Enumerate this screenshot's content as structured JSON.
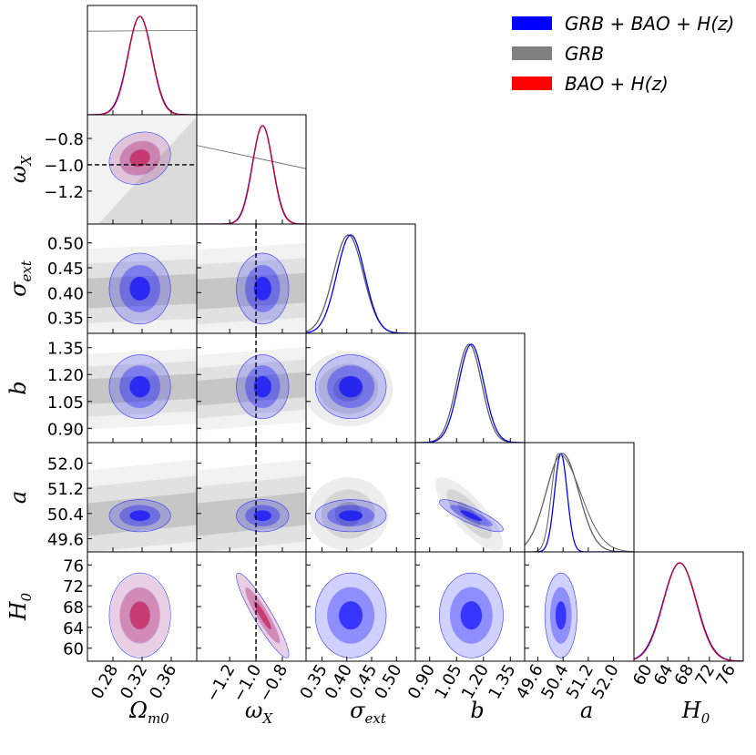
{
  "chart_data": {
    "type": "corner_plot",
    "parameters": [
      {
        "id": "Om",
        "label": "Ω",
        "sub": "m0",
        "ticks": [
          "0.28",
          "0.32",
          "0.36"
        ],
        "tick_values": [
          0.28,
          0.32,
          0.36
        ],
        "range": [
          0.245,
          0.395
        ]
      },
      {
        "id": "wX",
        "label": "ω",
        "sub": "X",
        "ticks": [
          "−1.2",
          "−1.0",
          "−0.8"
        ],
        "tick_values": [
          -1.2,
          -1.0,
          -0.8
        ],
        "range": [
          -1.45,
          -0.62
        ]
      },
      {
        "id": "sig",
        "label": "σ",
        "sub": "ext",
        "ticks": [
          "0.35",
          "0.40",
          "0.45",
          "0.50"
        ],
        "tick_values": [
          0.35,
          0.4,
          0.45,
          0.5
        ],
        "range": [
          0.318,
          0.538
        ]
      },
      {
        "id": "b",
        "label": "b",
        "sub": "",
        "ticks": [
          "0.90",
          "1.05",
          "1.20",
          "1.35"
        ],
        "tick_values": [
          0.9,
          1.05,
          1.2,
          1.35
        ],
        "range": [
          0.82,
          1.43
        ]
      },
      {
        "id": "a",
        "label": "a",
        "sub": "",
        "ticks": [
          "49.6",
          "50.4",
          "51.2",
          "52.0"
        ],
        "tick_values": [
          49.6,
          50.4,
          51.2,
          52.0
        ],
        "range": [
          49.18,
          52.65
        ]
      },
      {
        "id": "H0",
        "label": "H",
        "sub": "0",
        "ticks": [
          "60",
          "64",
          "68",
          "72",
          "76"
        ],
        "tick_values": [
          60,
          64,
          68,
          72,
          76
        ],
        "range": [
          57.5,
          78.5
        ]
      }
    ],
    "reference_line": {
      "parameter": "wX",
      "value": -1.0,
      "style": "dashed"
    },
    "series": [
      {
        "name": "GRB + BAO + H(z)",
        "color": "#0000ff",
        "mean": {
          "Om": 0.317,
          "wX": -0.95,
          "sig": 0.408,
          "b": 1.132,
          "a": 50.33,
          "H0": 66.3
        },
        "sigma": {
          "Om": 0.0165,
          "wX": 0.078,
          "sig": 0.028,
          "b": 0.07,
          "a": 0.2,
          "H0": 3.2
        },
        "correlation": {
          "wX-H0": -0.92,
          "b-a": -0.85,
          "Om-wX": 0.15
        }
      },
      {
        "name": "GRB",
        "color": "#808080",
        "mean": {
          "sig": 0.403,
          "b": 1.12,
          "a": 50.38
        },
        "sigma": {
          "sig": 0.03,
          "b": 0.07,
          "a": 0.52
        },
        "correlation": {
          "b-a": -0.8
        },
        "trend_lines": {
          "Om-sig": -0.04,
          "wX-sig": -0.06,
          "Om-b": -0.05,
          "wX-b": -0.08,
          "Om-a": -0.1,
          "wX-a": -0.1
        }
      },
      {
        "name": "BAO + H(z)",
        "color": "#ff0000",
        "mean": {
          "Om": 0.317,
          "wX": -0.95,
          "H0": 66.3
        },
        "sigma": {
          "Om": 0.0165,
          "wX": 0.078,
          "H0": 3.2
        },
        "correlation": {
          "wX-H0": -0.92,
          "Om-wX": 0.15
        }
      }
    ],
    "legend": [
      {
        "label": "GRB + BAO + H(z)",
        "color": "#0000ff"
      },
      {
        "label": "GRB",
        "color": "#808080"
      },
      {
        "label": "BAO + H(z)",
        "color": "#ff0000"
      }
    ],
    "legend_position": "top-right",
    "contour_levels": [
      "1σ",
      "2σ",
      "3σ"
    ]
  }
}
